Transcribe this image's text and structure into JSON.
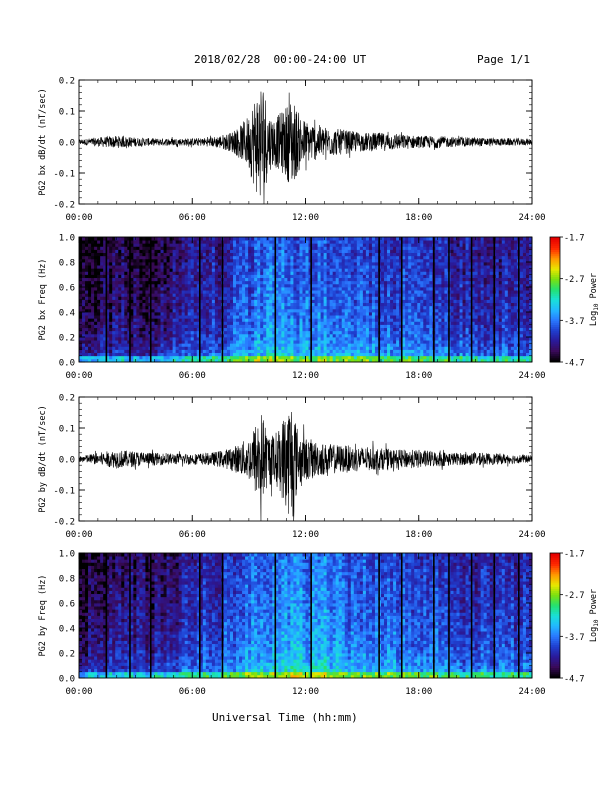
{
  "header": {
    "title": "2018/02/28  00:00-24:00 UT",
    "page": "Page 1/1"
  },
  "footer": {
    "xlabel": "Universal Time (hh:mm)"
  },
  "colors": {
    "line": "#000000",
    "colormap": [
      "#000000",
      "#3a0a5a",
      "#2a1a9a",
      "#1f3fcf",
      "#2a78ff",
      "#22b8ff",
      "#19e0d8",
      "#24e070",
      "#7ae010",
      "#e8e800",
      "#ff9a00",
      "#ff2a00",
      "#e60000"
    ]
  },
  "chart_data": [
    {
      "type": "line",
      "title": "",
      "ylabel": "PG2 bx dB/dt (nT/sec)",
      "xlabel": "",
      "xlim": [
        "00:00",
        "24:00"
      ],
      "ylim": [
        -0.2,
        0.2
      ],
      "x_ticks": [
        "00:00",
        "06:00",
        "12:00",
        "18:00",
        "24:00"
      ],
      "y_ticks": [
        "-0.2",
        "-0.1",
        "0.0",
        "0.1",
        "0.2"
      ],
      "series": [
        {
          "x_hours": [
            0,
            1,
            2,
            3,
            4,
            5,
            6,
            7,
            8,
            8.5,
            9,
            9.3,
            9.6,
            9.8,
            10,
            10.3,
            10.6,
            11,
            11.3,
            11.6,
            12,
            12.5,
            13,
            14,
            15,
            16,
            17,
            18,
            19,
            20,
            21,
            22,
            23,
            24
          ],
          "amplitude": [
            0.008,
            0.015,
            0.02,
            0.015,
            0.012,
            0.012,
            0.012,
            0.015,
            0.03,
            0.05,
            0.09,
            0.15,
            0.2,
            0.2,
            0.1,
            0.08,
            0.09,
            0.12,
            0.15,
            0.1,
            0.07,
            0.06,
            0.05,
            0.04,
            0.03,
            0.03,
            0.025,
            0.02,
            0.02,
            0.015,
            0.015,
            0.012,
            0.012,
            0.01
          ]
        }
      ]
    },
    {
      "type": "heatmap",
      "title": "",
      "ylabel": "PG2 bx Freq (Hz)",
      "xlabel": "",
      "xlim": [
        "00:00",
        "24:00"
      ],
      "ylim": [
        0.0,
        1.0
      ],
      "x_ticks": [
        "00:00",
        "06:00",
        "12:00",
        "18:00",
        "24:00"
      ],
      "y_ticks": [
        "0.0",
        "0.2",
        "0.4",
        "0.6",
        "0.8",
        "1.0"
      ],
      "colorbar": {
        "label": "Log10 Power",
        "ticks": [
          "-1.7",
          "-2.7",
          "-3.7",
          "-4.7"
        ],
        "range": [
          -4.7,
          -1.7
        ]
      },
      "gap_lines_hours": [
        1.45,
        2.7,
        3.8,
        6.4,
        7.6,
        10.4,
        12.3,
        15.9,
        17.1,
        18.8,
        19.6,
        20.8,
        22.0,
        23.3
      ],
      "time_profile_hours": [
        0,
        1,
        2,
        3,
        4,
        5,
        6,
        7,
        8,
        9,
        10,
        11,
        12,
        13,
        14,
        15,
        16,
        17,
        18,
        19,
        20,
        21,
        22,
        23,
        24
      ],
      "time_profile_power": [
        -4.5,
        -4.4,
        -4.3,
        -4.3,
        -4.3,
        -4.2,
        -4.1,
        -4.0,
        -3.9,
        -3.7,
        -3.6,
        -3.6,
        -3.6,
        -3.6,
        -3.7,
        -3.7,
        -3.8,
        -3.8,
        -3.9,
        -3.9,
        -4.0,
        -4.0,
        -4.0,
        -4.0,
        -4.0
      ]
    },
    {
      "type": "line",
      "title": "",
      "ylabel": "PG2 by dB/dt (nT/sec)",
      "xlabel": "",
      "xlim": [
        "00:00",
        "24:00"
      ],
      "ylim": [
        -0.2,
        0.2
      ],
      "x_ticks": [
        "00:00",
        "06:00",
        "12:00",
        "18:00",
        "24:00"
      ],
      "y_ticks": [
        "-0.2",
        "-0.1",
        "0.0",
        "0.1",
        "0.2"
      ],
      "series": [
        {
          "x_hours": [
            0,
            1,
            2,
            3,
            4,
            5,
            6,
            7,
            8,
            8.5,
            9,
            9.3,
            9.6,
            9.8,
            10,
            10.3,
            10.6,
            11,
            11.3,
            11.6,
            12,
            12.5,
            13,
            14,
            15,
            16,
            17,
            18,
            19,
            20,
            21,
            22,
            23,
            24
          ],
          "amplitude": [
            0.01,
            0.02,
            0.03,
            0.025,
            0.02,
            0.018,
            0.018,
            0.02,
            0.035,
            0.05,
            0.07,
            0.11,
            0.17,
            0.12,
            0.09,
            0.08,
            0.1,
            0.17,
            0.21,
            0.09,
            0.07,
            0.06,
            0.05,
            0.045,
            0.04,
            0.035,
            0.03,
            0.03,
            0.025,
            0.02,
            0.02,
            0.018,
            0.015,
            0.012
          ]
        }
      ]
    },
    {
      "type": "heatmap",
      "title": "",
      "ylabel": "PG2 by Freq (Hz)",
      "xlabel": "",
      "xlim": [
        "00:00",
        "24:00"
      ],
      "ylim": [
        0.0,
        1.0
      ],
      "x_ticks": [
        "00:00",
        "06:00",
        "12:00",
        "18:00",
        "24:00"
      ],
      "y_ticks": [
        "0.0",
        "0.2",
        "0.4",
        "0.6",
        "0.8",
        "1.0"
      ],
      "colorbar": {
        "label": "Log10 Power",
        "ticks": [
          "-1.7",
          "-2.7",
          "-3.7",
          "-4.7"
        ],
        "range": [
          -4.7,
          -1.7
        ]
      },
      "gap_lines_hours": [
        1.45,
        2.7,
        3.8,
        6.4,
        7.6,
        10.4,
        12.3,
        15.9,
        17.1,
        18.8,
        19.6,
        20.8,
        22.0,
        23.3
      ],
      "time_profile_hours": [
        0,
        1,
        2,
        3,
        4,
        5,
        6,
        7,
        8,
        9,
        10,
        11,
        12,
        13,
        14,
        15,
        16,
        17,
        18,
        19,
        20,
        21,
        22,
        23,
        24
      ],
      "time_profile_power": [
        -4.4,
        -4.3,
        -4.2,
        -4.2,
        -4.2,
        -4.1,
        -4.0,
        -3.9,
        -3.8,
        -3.6,
        -3.5,
        -3.5,
        -3.5,
        -3.5,
        -3.6,
        -3.6,
        -3.7,
        -3.7,
        -3.8,
        -3.8,
        -3.9,
        -3.9,
        -3.9,
        -3.9,
        -3.9
      ]
    }
  ]
}
